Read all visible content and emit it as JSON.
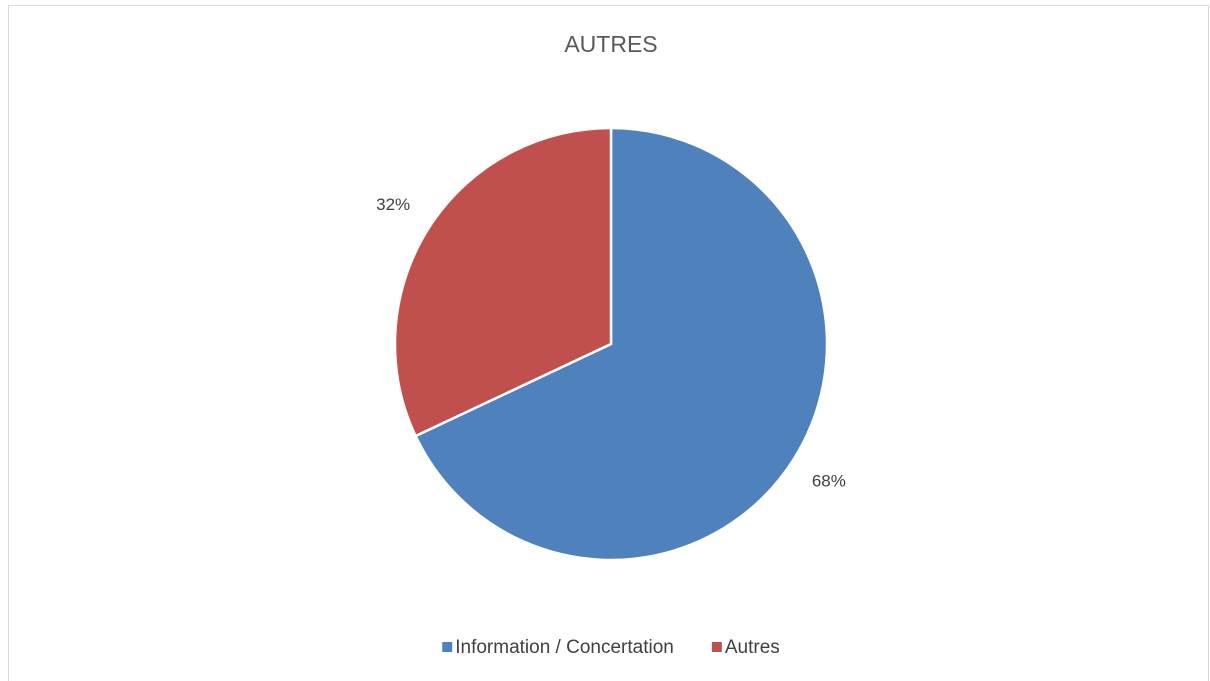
{
  "chart_data": {
    "type": "pie",
    "title": "AUTRES",
    "categories": [
      "Information / Concertation",
      "Autres"
    ],
    "values": [
      68,
      32
    ],
    "value_labels": [
      "68%",
      "32%"
    ],
    "colors": [
      "#4f81bd",
      "#c0504d"
    ],
    "legend": "bottom"
  }
}
